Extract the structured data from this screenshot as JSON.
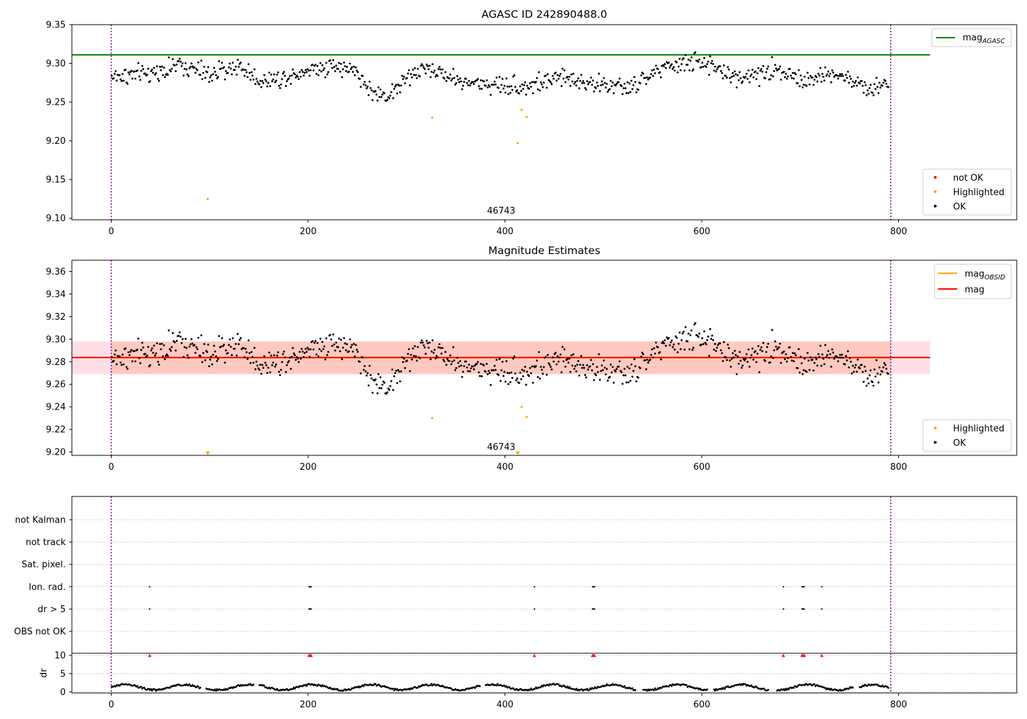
{
  "chart_data": [
    {
      "type": "scatter",
      "title": "AGASC ID 242890488.0",
      "xlabel": "",
      "ylabel": "",
      "xlim": [
        -40,
        920
      ],
      "ylim": [
        9.098,
        9.35
      ],
      "xticks": [
        0,
        200,
        400,
        600,
        800
      ],
      "yticks": [
        9.1,
        9.15,
        9.2,
        9.25,
        9.3,
        9.35
      ],
      "ytick_labels": [
        "9.10",
        "9.15",
        "9.20",
        "9.25",
        "9.30",
        "9.35"
      ],
      "grid": false,
      "annotation": "46743",
      "vlines": [
        0,
        792
      ],
      "legends": [
        {
          "position": "top-right",
          "entries": [
            {
              "label_base": "mag",
              "label_sub": "AGASC",
              "type": "line",
              "color": "#008000"
            }
          ]
        },
        {
          "position": "bottom-right",
          "entries": [
            {
              "label": "not OK",
              "type": "point",
              "color": "#ff0000"
            },
            {
              "label": "Highlighted",
              "type": "point",
              "color": "#ffa500"
            },
            {
              "label": "OK",
              "type": "point",
              "color": "#000000"
            }
          ]
        }
      ],
      "series": [
        {
          "name": "mag_AGASC",
          "type": "hline",
          "y": 9.311,
          "x_range": [
            -40,
            832
          ],
          "color": "#008000"
        },
        {
          "name": "OK",
          "type": "points",
          "color": "#000000",
          "generator": "ok_band",
          "n": 790,
          "trend": [
            [
              0,
              9.283
            ],
            [
              40,
              9.287
            ],
            [
              70,
              9.298
            ],
            [
              100,
              9.285
            ],
            [
              130,
              9.297
            ],
            [
              150,
              9.278
            ],
            [
              170,
              9.28
            ],
            [
              200,
              9.292
            ],
            [
              225,
              9.298
            ],
            [
              250,
              9.288
            ],
            [
              265,
              9.262
            ],
            [
              280,
              9.258
            ],
            [
              300,
              9.28
            ],
            [
              320,
              9.295
            ],
            [
              360,
              9.275
            ],
            [
              400,
              9.272
            ],
            [
              420,
              9.27
            ],
            [
              460,
              9.282
            ],
            [
              500,
              9.272
            ],
            [
              530,
              9.268
            ],
            [
              550,
              9.288
            ],
            [
              580,
              9.3
            ],
            [
              600,
              9.302
            ],
            [
              630,
              9.283
            ],
            [
              660,
              9.285
            ],
            [
              680,
              9.295
            ],
            [
              700,
              9.278
            ],
            [
              730,
              9.285
            ],
            [
              750,
              9.28
            ],
            [
              770,
              9.265
            ],
            [
              790,
              9.276
            ]
          ],
          "spread": 0.0095
        },
        {
          "name": "Highlighted",
          "type": "points",
          "color": "#ffa500",
          "points": [
            [
              98,
              9.125
            ],
            [
              326,
              9.23
            ],
            [
              413,
              9.197
            ],
            [
              417,
              9.24
            ],
            [
              422,
              9.231
            ]
          ]
        }
      ]
    },
    {
      "type": "scatter",
      "title": "Magnitude Estimates",
      "xlabel": "",
      "ylabel": "",
      "xlim": [
        -40,
        920
      ],
      "ylim": [
        9.197,
        9.37
      ],
      "xticks": [
        0,
        200,
        400,
        600,
        800
      ],
      "yticks": [
        9.2,
        9.22,
        9.24,
        9.26,
        9.28,
        9.3,
        9.32,
        9.34,
        9.36
      ],
      "ytick_labels": [
        "9.20",
        "9.22",
        "9.24",
        "9.26",
        "9.28",
        "9.30",
        "9.32",
        "9.34",
        "9.36"
      ],
      "grid": false,
      "annotation": "46743",
      "vlines": [
        0,
        792
      ],
      "legends": [
        {
          "position": "top-right",
          "entries": [
            {
              "label_base": "mag",
              "label_sub": "OBSID",
              "type": "line",
              "color": "#ffa500"
            },
            {
              "label": "mag",
              "type": "line",
              "color": "#ff0000"
            }
          ]
        },
        {
          "position": "bottom-right",
          "entries": [
            {
              "label": "Highlighted",
              "type": "point",
              "color": "#ffa500"
            },
            {
              "label": "OK",
              "type": "point",
              "color": "#000000"
            }
          ]
        }
      ],
      "bands": [
        {
          "y0": 9.269,
          "y1": 9.298,
          "x_range": [
            -40,
            832
          ],
          "color": "#ffc0cb",
          "opacity": 0.5
        },
        {
          "y0": 9.269,
          "y1": 9.298,
          "x_range": [
            0,
            792
          ],
          "color": "#ffa07a",
          "opacity": 0.35
        }
      ],
      "series": [
        {
          "name": "mag_OBSID",
          "type": "hline",
          "y": 9.2835,
          "x_range": [
            0,
            792
          ],
          "color": "#ffa500"
        },
        {
          "name": "mag",
          "type": "hline",
          "y": 9.2837,
          "x_range": [
            -40,
            832
          ],
          "color": "#ff0000"
        },
        {
          "name": "OK",
          "type": "points",
          "color": "#000000",
          "generator": "ok_band",
          "n": 790,
          "trend": [
            [
              0,
              9.283
            ],
            [
              40,
              9.287
            ],
            [
              70,
              9.298
            ],
            [
              100,
              9.285
            ],
            [
              130,
              9.297
            ],
            [
              150,
              9.278
            ],
            [
              170,
              9.28
            ],
            [
              200,
              9.292
            ],
            [
              225,
              9.298
            ],
            [
              250,
              9.288
            ],
            [
              265,
              9.262
            ],
            [
              280,
              9.258
            ],
            [
              300,
              9.28
            ],
            [
              320,
              9.295
            ],
            [
              360,
              9.275
            ],
            [
              400,
              9.272
            ],
            [
              420,
              9.27
            ],
            [
              460,
              9.282
            ],
            [
              500,
              9.272
            ],
            [
              530,
              9.268
            ],
            [
              550,
              9.288
            ],
            [
              580,
              9.3
            ],
            [
              600,
              9.302
            ],
            [
              630,
              9.283
            ],
            [
              660,
              9.285
            ],
            [
              680,
              9.295
            ],
            [
              700,
              9.278
            ],
            [
              730,
              9.285
            ],
            [
              750,
              9.28
            ],
            [
              770,
              9.265
            ],
            [
              790,
              9.276
            ]
          ],
          "spread": 0.0095
        },
        {
          "name": "Highlighted",
          "type": "points",
          "color": "#ffa500",
          "points": [
            [
              326,
              9.23
            ],
            [
              417,
              9.24
            ],
            [
              422,
              9.231
            ]
          ]
        },
        {
          "name": "Highlighted (below range)",
          "type": "triangles-down",
          "color": "#ffa500",
          "points": [
            [
              98,
              9.199
            ],
            [
              413,
              9.199
            ]
          ]
        }
      ]
    },
    {
      "type": "scatter",
      "title": "",
      "xlabel": "",
      "ylabel": "",
      "xlim": [
        -40,
        920
      ],
      "grid": true,
      "vlines": [
        0,
        792
      ],
      "categories": [
        "not Kalman",
        "not track",
        "Sat. pixel.",
        "Ion. rad.",
        "dr > 5",
        "OBS not OK"
      ],
      "series": [
        {
          "name": "Ion. rad.",
          "type": "flags",
          "color": "#000000",
          "x": [
            39,
            201,
            202,
            203,
            430,
            489,
            490,
            491,
            683,
            702,
            703,
            704,
            722
          ]
        },
        {
          "name": "dr > 5",
          "type": "flags",
          "color": "#000000",
          "x": [
            39,
            201,
            202,
            203,
            430,
            489,
            490,
            491,
            683,
            702,
            703,
            704,
            722
          ]
        }
      ]
    },
    {
      "type": "scatter",
      "title": "",
      "xlabel": "",
      "ylabel": "dr",
      "xlim": [
        -40,
        920
      ],
      "ylim": [
        -0.3,
        10.6
      ],
      "xticks": [
        0,
        200,
        400,
        600,
        800
      ],
      "yticks": [
        0,
        5,
        10
      ],
      "ytick_labels": [
        "0",
        "5",
        "10"
      ],
      "grid": true,
      "vlines": [
        0,
        792
      ],
      "series": [
        {
          "name": "dr",
          "type": "points",
          "color": "#000000",
          "generator": "dr_line",
          "n": 790
        },
        {
          "name": "dr capped",
          "type": "triangles-up",
          "color": "#ff0000",
          "y": 10,
          "x": [
            39,
            201,
            202,
            203,
            430,
            489,
            490,
            491,
            683,
            702,
            703,
            704,
            722
          ]
        }
      ]
    }
  ]
}
